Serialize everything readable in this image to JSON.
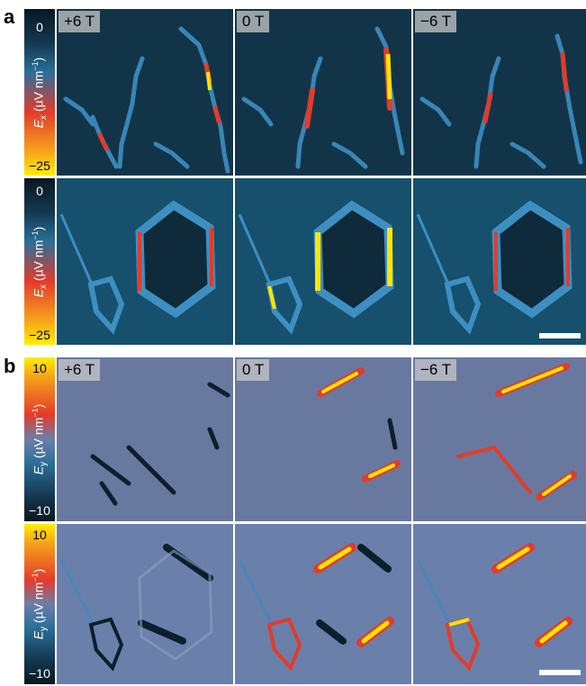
{
  "panels": [
    {
      "letter": "a",
      "colorbar": {
        "symbol": "E",
        "subscript": "x",
        "unit_open": " (",
        "mu": "µ",
        "unit_mid": "V nm",
        "sup": "−1",
        "unit_close": ")",
        "top_tick": "0",
        "bottom_tick": "−25"
      },
      "fields": [
        "+6 T",
        "0 T",
        "−6 T"
      ],
      "colors": {
        "bg": "#0f2a3a",
        "line": "#3b8fc4",
        "hot": "#e33b2b",
        "max": "#ffe400"
      }
    },
    {
      "letter": "b",
      "colorbar": {
        "symbol": "E",
        "subscript": "y",
        "unit_open": " (",
        "mu": "µ",
        "unit_mid": "V nm",
        "sup": "−1",
        "unit_close": ")",
        "top_tick": "10",
        "bottom_tick": "−10"
      },
      "fields": [
        "+6 T",
        "0 T",
        "−6 T"
      ],
      "colors": {
        "bg": "#5a7ea6",
        "line": "#0c1f2c",
        "hot": "#e33b2b",
        "max": "#ffe400"
      }
    }
  ]
}
